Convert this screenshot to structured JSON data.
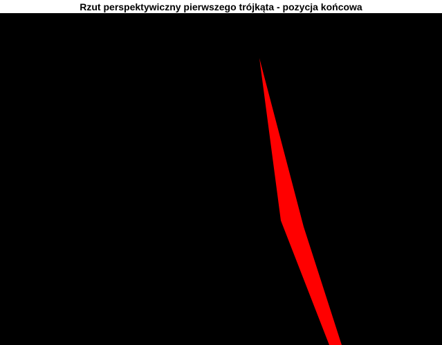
{
  "window": {
    "title": "Rzut perspektywiczny pierwszego trójkąta - pozycja końcowa"
  },
  "scene": {
    "background_color": "#000000",
    "triangle_color": "#ff0000"
  }
}
